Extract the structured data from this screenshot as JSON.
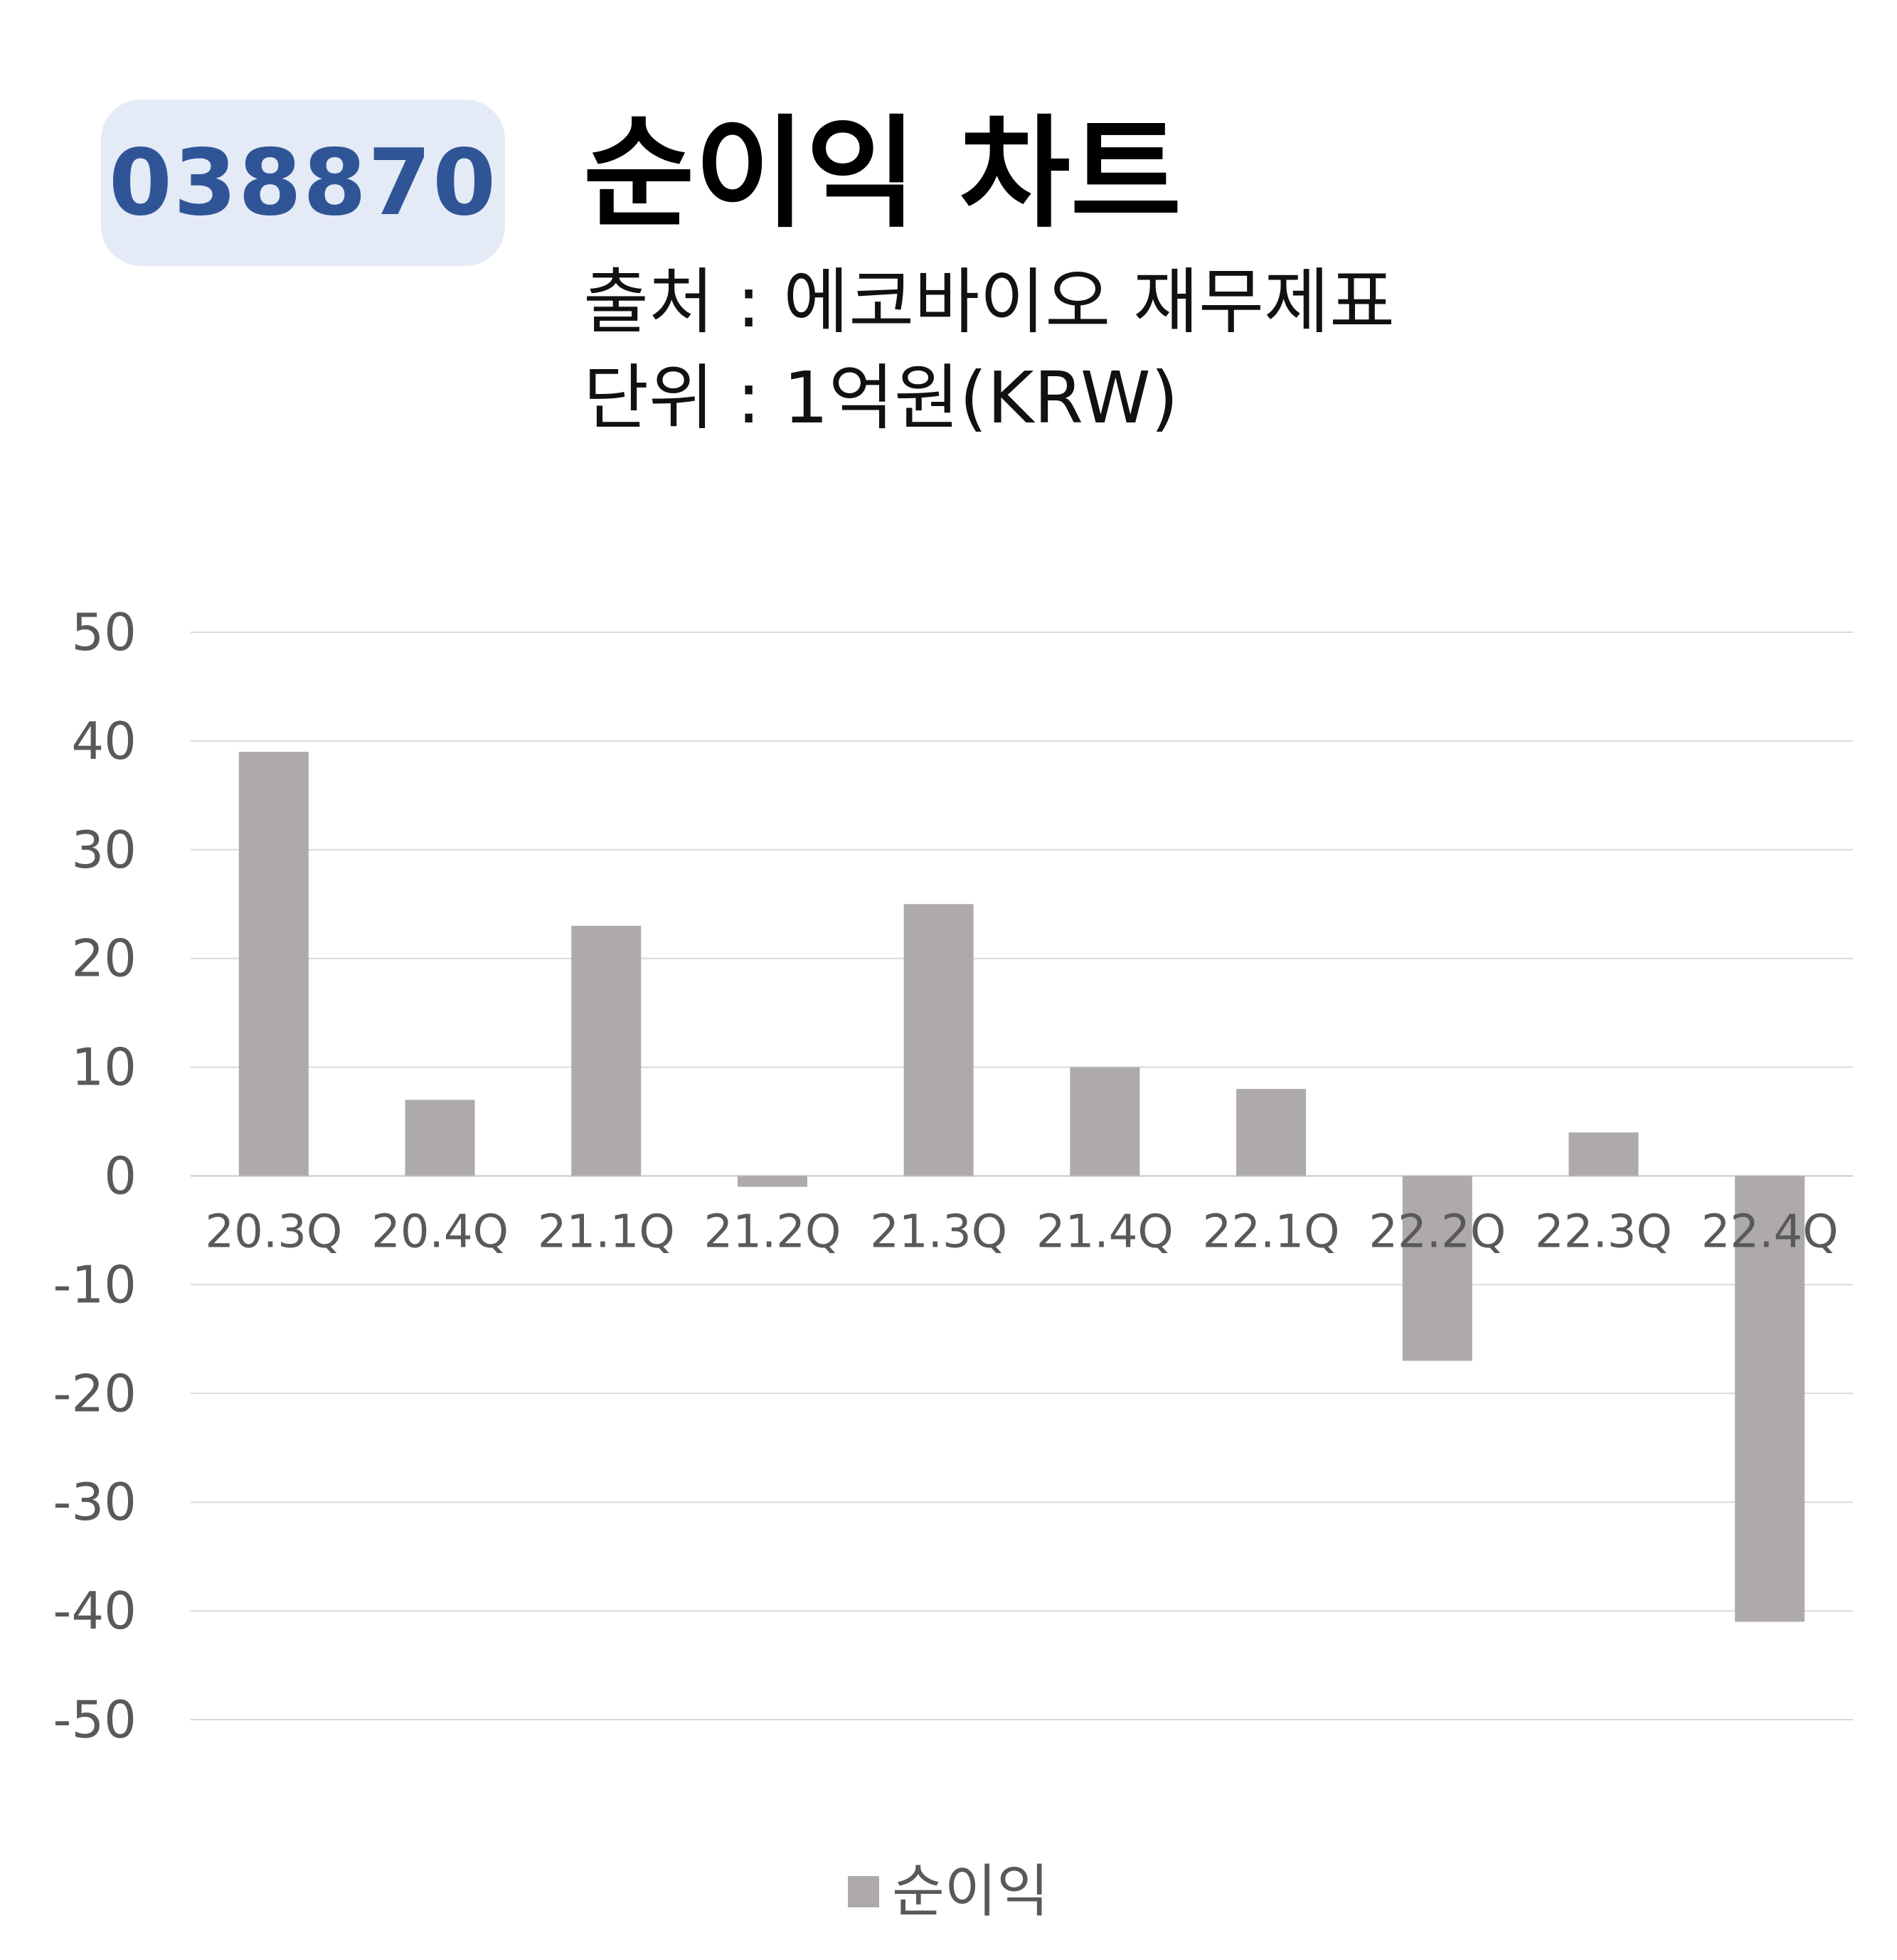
{
  "badge": {
    "code": "038870"
  },
  "header": {
    "title": "순이익 차트",
    "source": "출처 : 에코바이오 재무제표",
    "unit": "단위 : 1억원(KRW)"
  },
  "colors": {
    "bar": "#aeaaaa",
    "grid": "#d9d9d9",
    "tick_text": "#595959",
    "badge_bg": "#e4eaf6",
    "badge_text": "#2f5597"
  },
  "chart_data": {
    "type": "bar",
    "categories": [
      "20.3Q",
      "20.4Q",
      "21.1Q",
      "21.2Q",
      "21.3Q",
      "21.4Q",
      "22.1Q",
      "22.2Q",
      "22.3Q",
      "22.4Q"
    ],
    "series": [
      {
        "name": "순이익",
        "values": [
          39,
          7,
          23,
          -1,
          25,
          10,
          8,
          -17,
          4,
          -41
        ]
      }
    ],
    "ylim": [
      -50,
      50
    ],
    "yticks": [
      50,
      40,
      30,
      20,
      10,
      0,
      -10,
      -20,
      -30,
      -40,
      -50
    ],
    "grid": true,
    "legend": "bottom"
  }
}
